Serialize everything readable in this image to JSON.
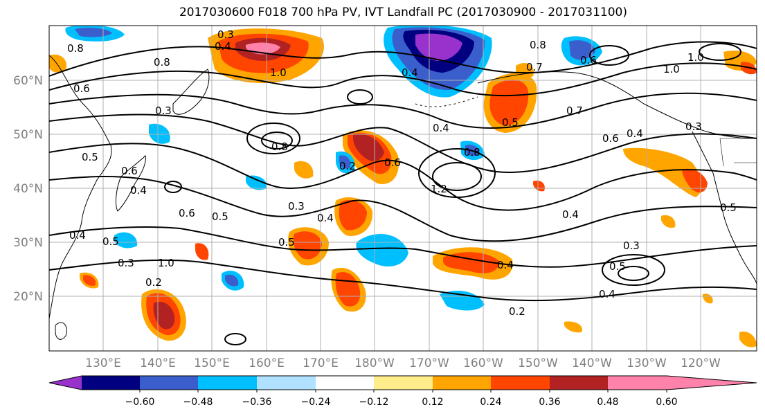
{
  "title": "2017030600 F018 700 hPa PV, IVT Landfall PC (2017030900 - 2017031100)",
  "map": {
    "lon_labels": [
      "130°E",
      "140°E",
      "150°E",
      "160°E",
      "170°E",
      "180°W",
      "170°W",
      "160°W",
      "150°W",
      "140°W",
      "130°W",
      "120°W"
    ],
    "lat_labels": [
      "60°N",
      "50°N",
      "40°N",
      "30°N",
      "20°N"
    ],
    "contour_color": "#000000",
    "grid_color": "#b0b0b0",
    "land_outline_color": "#000000",
    "contour_labels": [
      "0.8",
      "0.8",
      "0.6",
      "0.3",
      "0.4",
      "1.0",
      "0.4",
      "0.8",
      "0.7",
      "0.6",
      "1.0",
      "1.0",
      "0.5",
      "0.7",
      "0.6",
      "0.4",
      "0.3",
      "0.8",
      "0.2",
      "0.8",
      "0.4",
      "1.2",
      "0.6",
      "0.4",
      "0.3",
      "0.4",
      "0.2",
      "0.5",
      "0.3",
      "0.3",
      "0.5",
      "0.4",
      "0.2",
      "0.6",
      "0.5",
      "0.4",
      "0.3",
      "0.5",
      "0.6",
      "0.5",
      "0.4",
      "0.4",
      "0.5",
      "1.0"
    ]
  },
  "colorbar": {
    "tick_labels": [
      "−0.60",
      "−0.48",
      "−0.36",
      "−0.24",
      "−0.12",
      "0.12",
      "0.24",
      "0.36",
      "0.48",
      "0.60"
    ],
    "colors": [
      "#9932cc",
      "#000080",
      "#3a5fcd",
      "#00bfff",
      "#b0e2ff",
      "#ffffff",
      "#ffec8b",
      "#ffa500",
      "#ff4500",
      "#b22222",
      "#ff82ab"
    ]
  }
}
